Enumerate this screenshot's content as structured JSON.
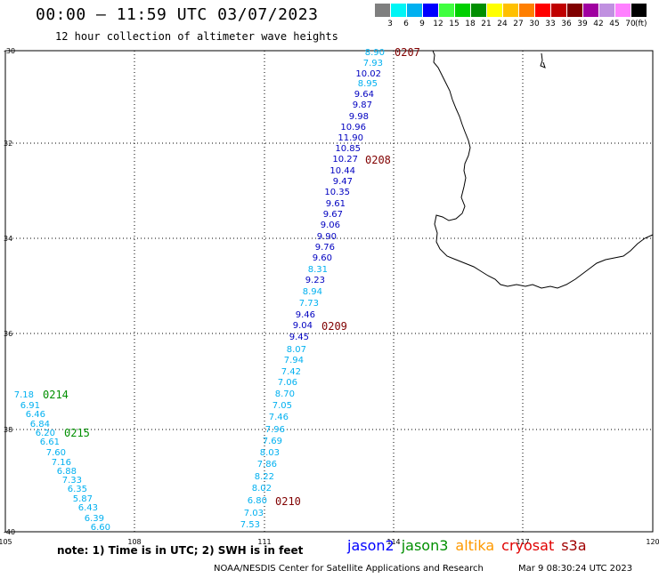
{
  "header": {
    "title": "00:00 – 11:59 UTC 03/07/2023",
    "subtitle": "12 hour collection of altimeter wave heights"
  },
  "legend": {
    "unit": "(ft)",
    "items": [
      {
        "label": "3",
        "color": "#7f7f7f"
      },
      {
        "label": "6",
        "color": "#00f5f5"
      },
      {
        "label": "9",
        "color": "#00b0f0"
      },
      {
        "label": "12",
        "color": "#0000ff"
      },
      {
        "label": "15",
        "color": "#40ff40"
      },
      {
        "label": "18",
        "color": "#00d000"
      },
      {
        "label": "21",
        "color": "#008f00"
      },
      {
        "label": "24",
        "color": "#ffff00"
      },
      {
        "label": "27",
        "color": "#ffc000"
      },
      {
        "label": "30",
        "color": "#ff7f00"
      },
      {
        "label": "33",
        "color": "#ff0000"
      },
      {
        "label": "36",
        "color": "#c00000"
      },
      {
        "label": "39",
        "color": "#800000"
      },
      {
        "label": "42",
        "color": "#a000a0"
      },
      {
        "label": "45",
        "color": "#c090e0"
      },
      {
        "label": "70",
        "color": "#ff80ff"
      },
      {
        "label": "",
        "color": "#000000"
      }
    ]
  },
  "axes": {
    "lat_labels": [
      "-30",
      "32",
      "34",
      "36",
      "38",
      "-40"
    ],
    "lon_labels": [
      "105",
      "108",
      "111",
      "114",
      "117",
      "120"
    ]
  },
  "colors": {
    "cyan": "#00b0f0",
    "blue": "#0000c0",
    "time": "#800000",
    "green": "#008f00"
  },
  "passes": [
    {
      "time": "0207",
      "time_color": "time",
      "points": [
        {
          "v": "8.90",
          "c": "cyan"
        },
        {
          "v": "7.93",
          "c": "cyan"
        },
        {
          "v": "10.02",
          "c": "blue"
        },
        {
          "v": "8.95",
          "c": "cyan"
        },
        {
          "v": "9.64",
          "c": "blue"
        },
        {
          "v": "9.87",
          "c": "blue"
        },
        {
          "v": "9.98",
          "c": "blue"
        },
        {
          "v": "10.96",
          "c": "blue"
        },
        {
          "v": "11.90",
          "c": "blue"
        },
        {
          "v": "10.85",
          "c": "blue"
        },
        {
          "v": "10.27",
          "c": "blue"
        },
        {
          "v": "10.44",
          "c": "blue"
        },
        {
          "v": "9.47",
          "c": "blue"
        },
        {
          "v": "10.35",
          "c": "blue"
        },
        {
          "v": "9.61",
          "c": "blue"
        },
        {
          "v": "9.67",
          "c": "blue"
        },
        {
          "v": "9.06",
          "c": "blue"
        },
        {
          "v": "9.90",
          "c": "blue"
        },
        {
          "v": "9.76",
          "c": "blue"
        },
        {
          "v": "9.60",
          "c": "blue"
        },
        {
          "v": "8.31",
          "c": "cyan"
        },
        {
          "v": "9.23",
          "c": "blue"
        },
        {
          "v": "8.94",
          "c": "cyan"
        },
        {
          "v": "7.73",
          "c": "cyan"
        },
        {
          "v": "9.46",
          "c": "blue"
        },
        {
          "v": "9.04",
          "c": "blue"
        },
        {
          "v": "9.45",
          "c": "blue"
        },
        {
          "v": "8.07",
          "c": "cyan"
        },
        {
          "v": "7.94",
          "c": "cyan"
        },
        {
          "v": "7.42",
          "c": "cyan"
        },
        {
          "v": "7.06",
          "c": "cyan"
        },
        {
          "v": "8.70",
          "c": "cyan"
        },
        {
          "v": "7.05",
          "c": "cyan"
        },
        {
          "v": "7.46",
          "c": "cyan"
        },
        {
          "v": "7.96",
          "c": "cyan"
        },
        {
          "v": "7.69",
          "c": "cyan"
        },
        {
          "v": "8.03",
          "c": "cyan"
        },
        {
          "v": "7.86",
          "c": "cyan"
        },
        {
          "v": "8.22",
          "c": "cyan"
        },
        {
          "v": "8.02",
          "c": "cyan"
        },
        {
          "v": "6.80",
          "c": "cyan"
        },
        {
          "v": "7.03",
          "c": "cyan"
        },
        {
          "v": "7.53",
          "c": "cyan"
        }
      ]
    },
    {
      "time": "0214",
      "time_color": "green",
      "points": [
        {
          "v": "7.18",
          "c": "cyan"
        },
        {
          "v": "6.91",
          "c": "cyan"
        },
        {
          "v": "6.46",
          "c": "cyan"
        },
        {
          "v": "6.84",
          "c": "cyan"
        },
        {
          "v": "6.20",
          "c": "cyan"
        },
        {
          "v": "6.61",
          "c": "cyan"
        },
        {
          "v": "7.60",
          "c": "cyan"
        },
        {
          "v": "7.16",
          "c": "cyan"
        },
        {
          "v": "6.88",
          "c": "cyan"
        },
        {
          "v": "7.33",
          "c": "cyan"
        },
        {
          "v": "6.35",
          "c": "cyan"
        },
        {
          "v": "5.87",
          "c": "cyan"
        },
        {
          "v": "6.43",
          "c": "cyan"
        },
        {
          "v": "6.39",
          "c": "cyan"
        },
        {
          "v": "6.60",
          "c": "cyan"
        }
      ]
    }
  ],
  "time_markers": [
    {
      "label": "0208",
      "c": "time"
    },
    {
      "label": "0209",
      "c": "time"
    },
    {
      "label": "0210",
      "c": "time"
    },
    {
      "label": "0215",
      "c": "green"
    }
  ],
  "footer": {
    "note": "note:  1) Time is in UTC;  2) SWH is in feet",
    "satellites": [
      {
        "name": "jason2",
        "color": "#0000ff"
      },
      {
        "name": "jason3",
        "color": "#008f00"
      },
      {
        "name": "altika",
        "color": "#ff9900"
      },
      {
        "name": "cryosat",
        "color": "#e00000"
      },
      {
        "name": "s3a",
        "color": "#a00000"
      }
    ],
    "credit": "NOAA/NESDIS Center for Satellite Applications and Research",
    "timestamp": "Mar  9 08:30:24 UTC 2023"
  }
}
